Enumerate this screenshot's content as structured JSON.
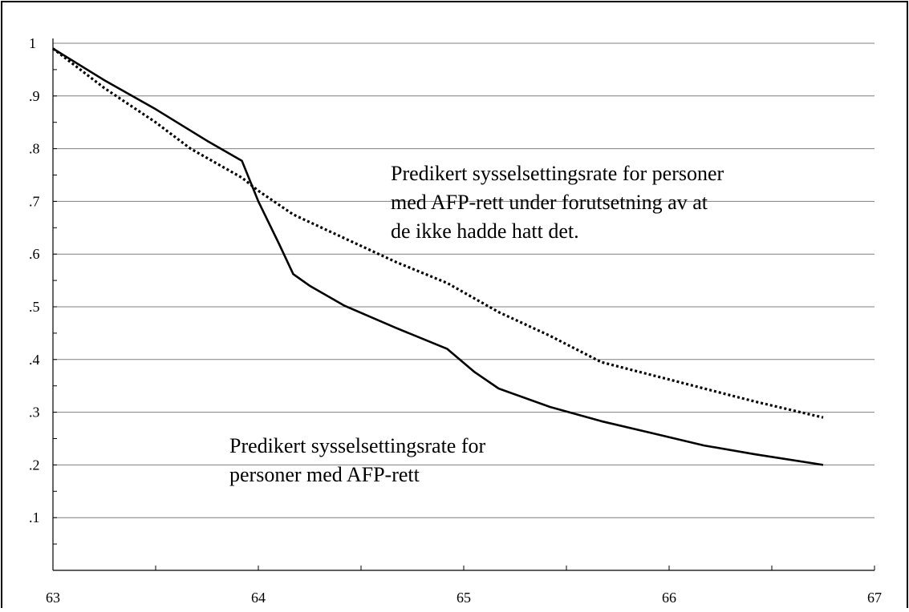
{
  "chart_data": {
    "type": "line",
    "title": "",
    "xlabel": "",
    "ylabel": "",
    "xlim": [
      63,
      67
    ],
    "ylim": [
      0,
      1
    ],
    "grid": true,
    "x_ticks": [
      63,
      64,
      65,
      66,
      67
    ],
    "x_tick_labels": [
      "63",
      "64",
      "65",
      "66",
      "67"
    ],
    "y_ticks": [
      0.1,
      0.2,
      0.3,
      0.4,
      0.5,
      0.6,
      0.7,
      0.8,
      0.9,
      1.0
    ],
    "y_tick_labels": [
      ".1",
      ".2",
      ".3",
      ".4",
      ".5",
      ".6",
      ".7",
      ".8",
      ".9",
      "1"
    ],
    "series": [
      {
        "style": "solid",
        "annotation_index": 1,
        "points": [
          [
            63.0,
            0.99
          ],
          [
            63.25,
            0.93
          ],
          [
            63.5,
            0.875
          ],
          [
            63.75,
            0.815
          ],
          [
            63.92,
            0.777
          ],
          [
            64.0,
            0.7
          ],
          [
            64.1,
            0.62
          ],
          [
            64.17,
            0.562
          ],
          [
            64.25,
            0.54
          ],
          [
            64.42,
            0.502
          ],
          [
            64.67,
            0.46
          ],
          [
            64.92,
            0.42
          ],
          [
            65.05,
            0.377
          ],
          [
            65.17,
            0.345
          ],
          [
            65.42,
            0.31
          ],
          [
            65.67,
            0.283
          ],
          [
            65.92,
            0.26
          ],
          [
            66.17,
            0.237
          ],
          [
            66.42,
            0.22
          ],
          [
            66.75,
            0.2
          ]
        ]
      },
      {
        "style": "dotted",
        "annotation_index": 0,
        "points": [
          [
            63.0,
            0.99
          ],
          [
            63.25,
            0.915
          ],
          [
            63.5,
            0.85
          ],
          [
            63.67,
            0.8
          ],
          [
            63.92,
            0.745
          ],
          [
            64.0,
            0.72
          ],
          [
            64.17,
            0.675
          ],
          [
            64.42,
            0.63
          ],
          [
            64.67,
            0.585
          ],
          [
            64.92,
            0.545
          ],
          [
            65.17,
            0.49
          ],
          [
            65.42,
            0.445
          ],
          [
            65.67,
            0.395
          ],
          [
            65.92,
            0.37
          ],
          [
            66.17,
            0.345
          ],
          [
            66.42,
            0.32
          ],
          [
            66.75,
            0.29
          ]
        ]
      }
    ],
    "annotations": [
      {
        "lines": [
          "Predikert sysselsettingsrate for personer",
          "med AFP-rett under forutsetning av at",
          "de ikke hadde hatt det."
        ]
      },
      {
        "lines": [
          "Predikert sysselsettingsrate for",
          "personer med AFP-rett"
        ]
      }
    ],
    "colors": {
      "line": "#000000",
      "grid": "#7f7f7f",
      "axis": "#000000"
    }
  }
}
